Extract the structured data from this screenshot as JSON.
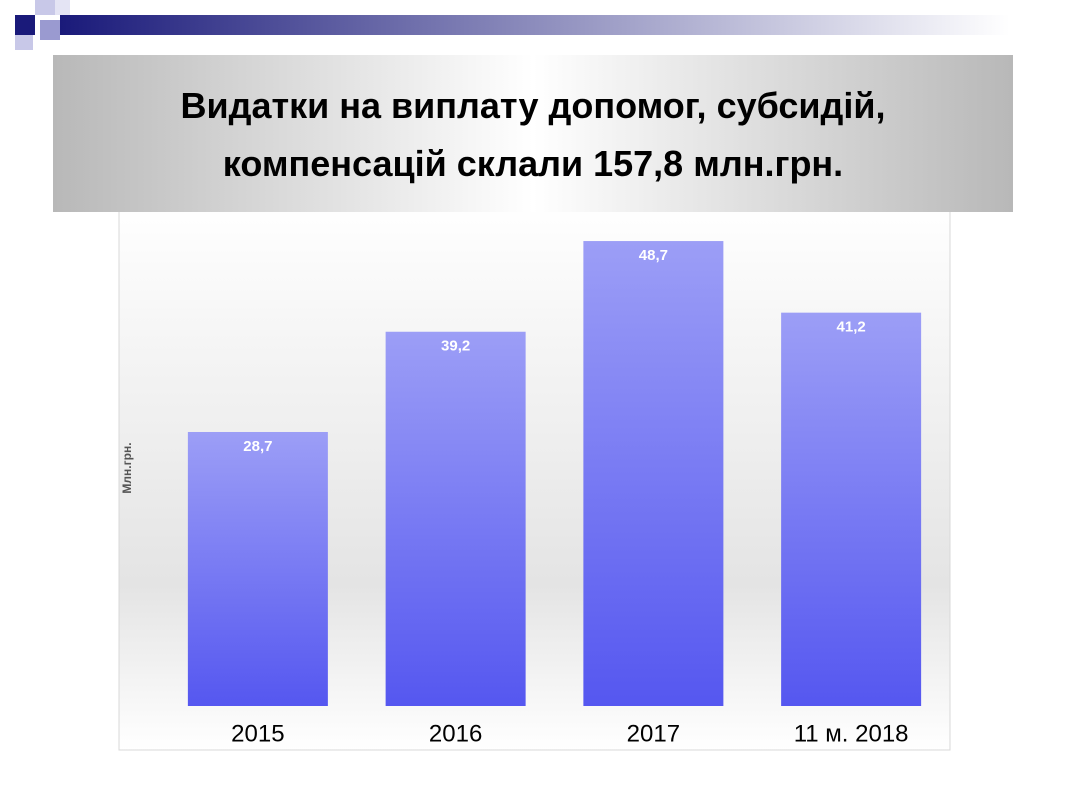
{
  "chart_data": {
    "type": "bar",
    "title": "Видатки на виплату допомог, субсидій, компенсацій склали 157,8 млн.грн.",
    "y_label": "Млн.грн.",
    "categories": [
      "2015",
      "2016",
      "2017",
      "11 м. 2018"
    ],
    "values": [
      28.7,
      39.2,
      48.7,
      41.2
    ],
    "value_labels": [
      "28,7",
      "39,2",
      "48,7",
      "41,2"
    ],
    "ylim": [
      0,
      53
    ],
    "color": "#7577f3"
  }
}
